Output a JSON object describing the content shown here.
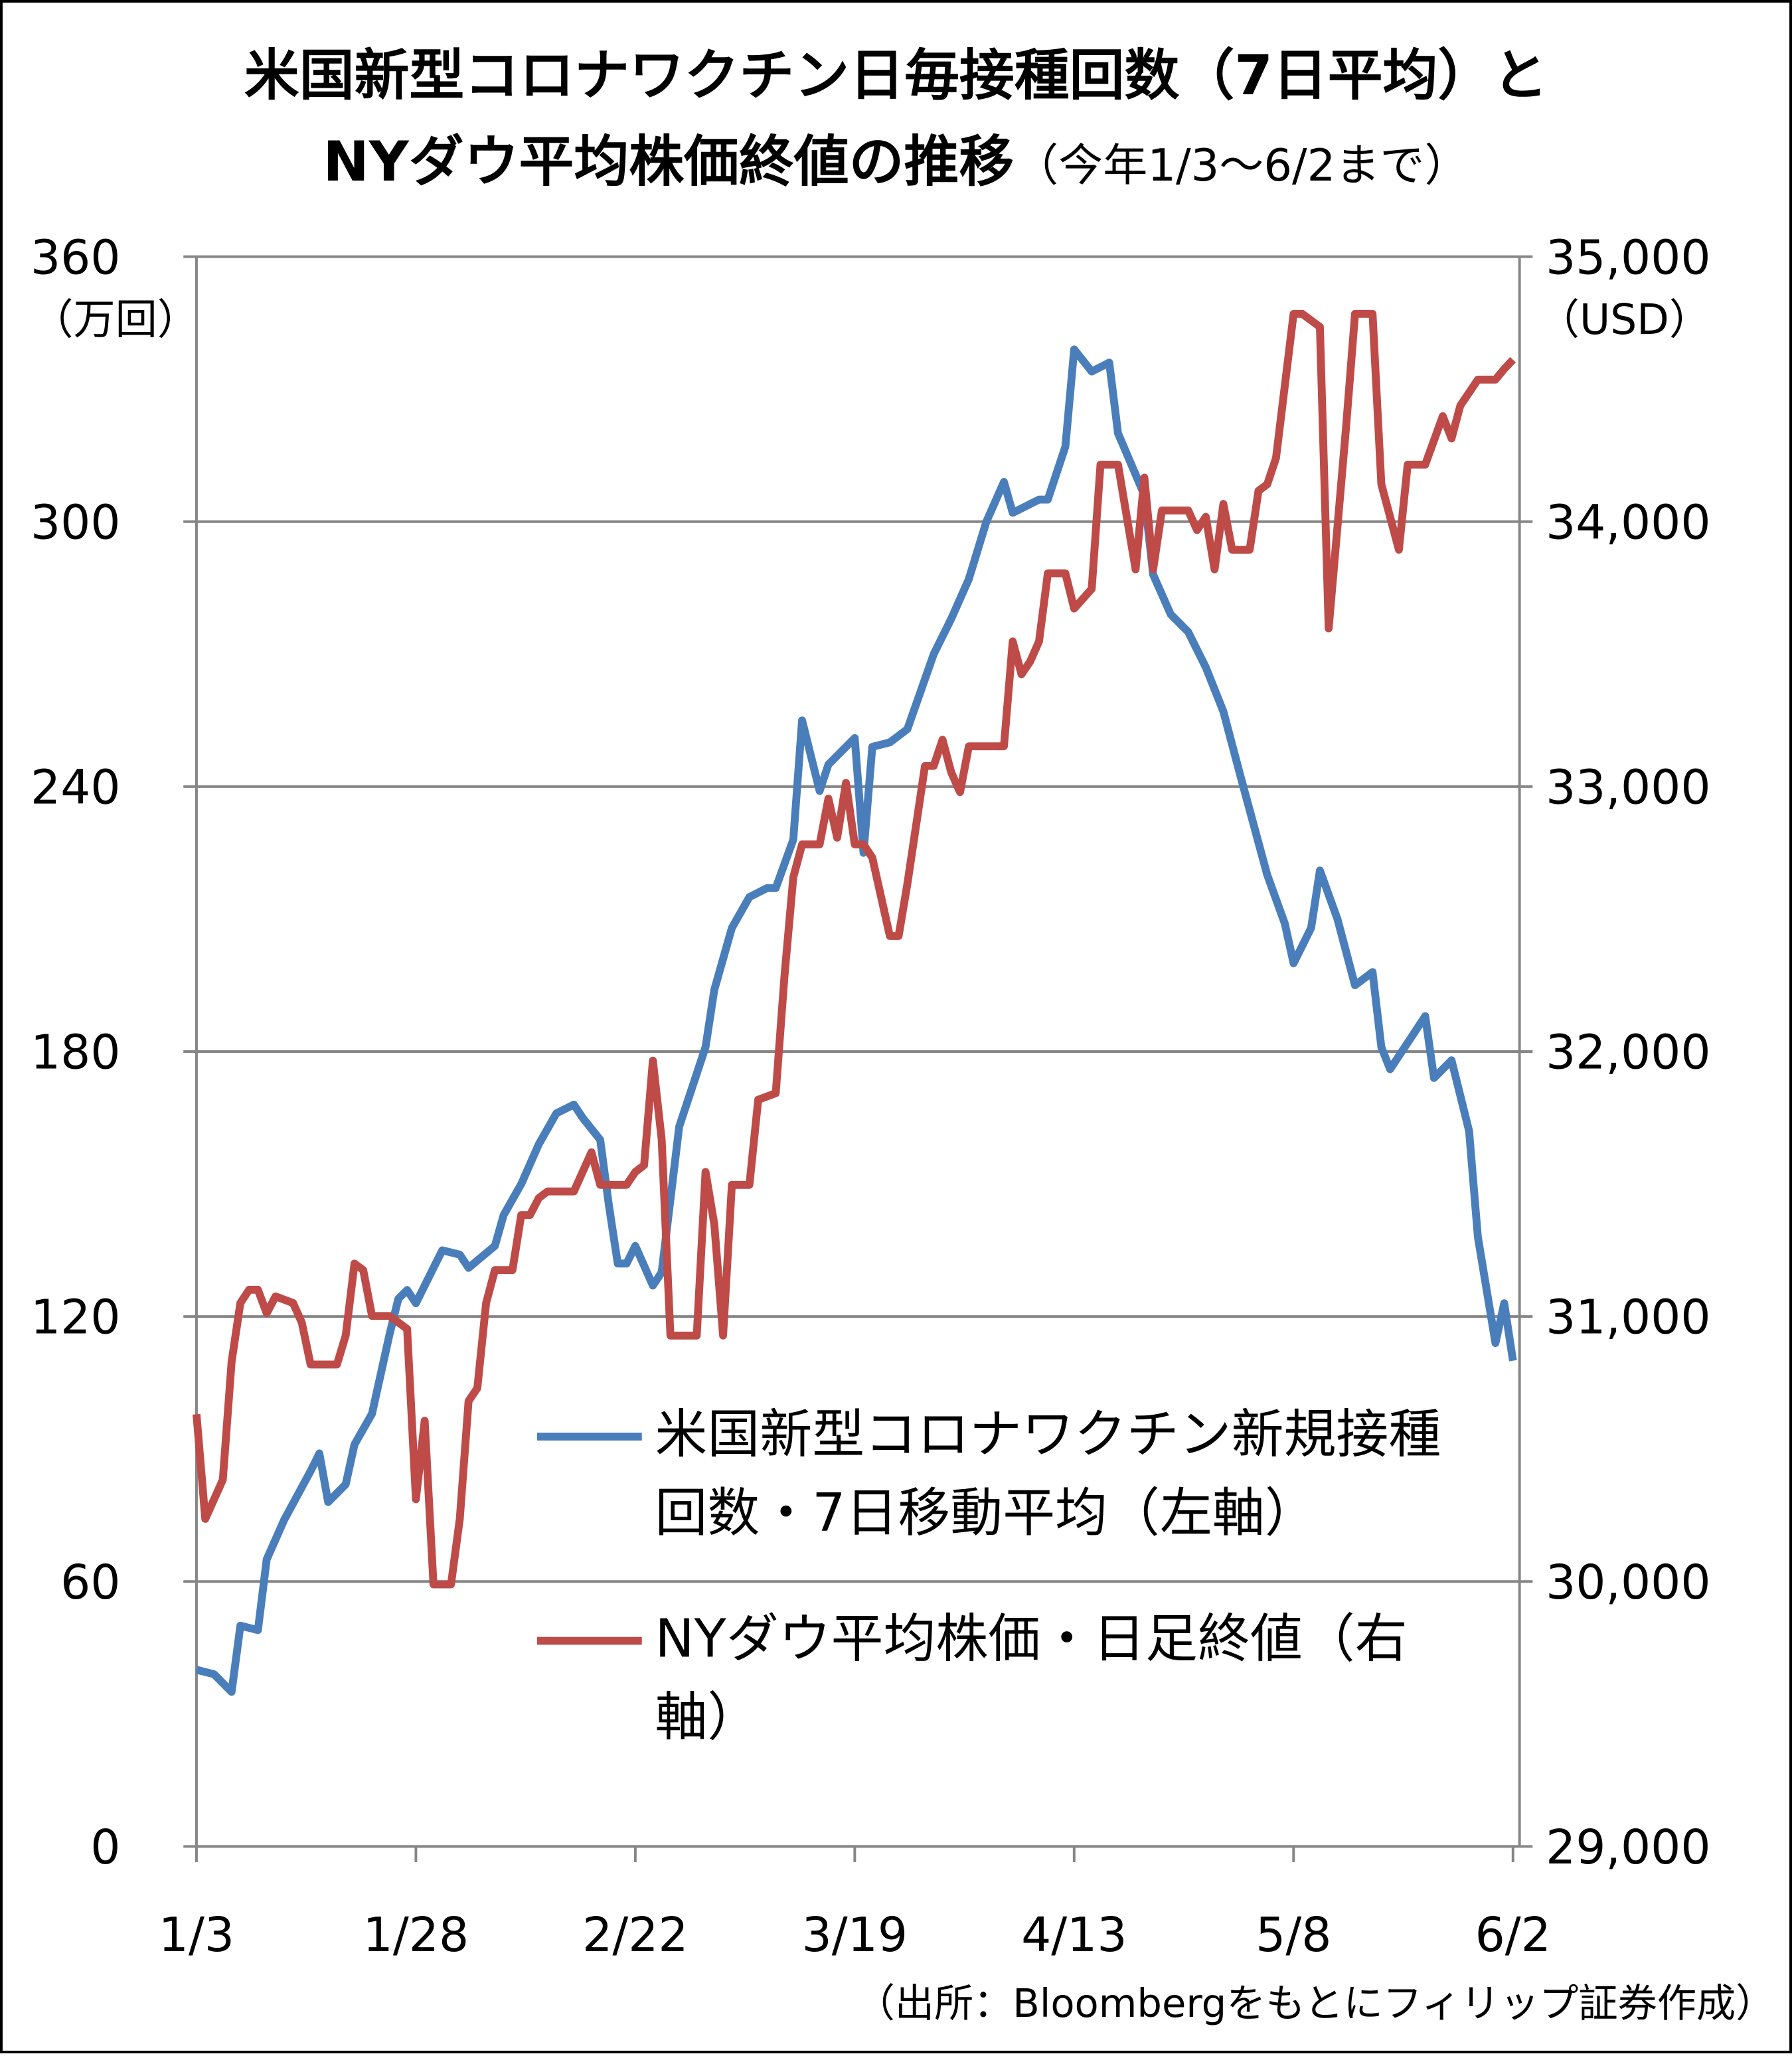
{
  "chart_data": {
    "type": "line",
    "title": [
      "米国新型コロナワクチン日毎接種回数（7日平均）と",
      "NYダウ平均株価終値の推移"
    ],
    "subtitle": "（今年1/3～6/2まで）",
    "y_unit": "（万回）",
    "y2_unit": "（USD）",
    "source": "（出所：Bloombergをもとにフィリップ証券作成）",
    "xlim": [
      "1/3",
      "6/2"
    ],
    "xticks": [
      "1/3",
      "1/28",
      "2/22",
      "3/19",
      "4/13",
      "5/8",
      "6/2"
    ],
    "ylim": [
      0,
      360
    ],
    "yticks": [
      0,
      60,
      120,
      180,
      240,
      300,
      360
    ],
    "y2lim": [
      29000,
      35000
    ],
    "y2ticks": [
      {
        "value": 29000,
        "label": "29,000"
      },
      {
        "value": 30000,
        "label": "30,000"
      },
      {
        "value": 31000,
        "label": "31,000"
      },
      {
        "value": 32000,
        "label": "32,000"
      },
      {
        "value": 33000,
        "label": "33,000"
      },
      {
        "value": 34000,
        "label": "34,000"
      },
      {
        "value": 35000,
        "label": "35,000"
      }
    ],
    "grid": true,
    "series": [
      {
        "name": "米国新型コロナワクチン新規接種回数・7日移動平均（左軸）",
        "color": "#4a7ebb",
        "axis": "y",
        "x": [
          "1/3",
          "1/5",
          "1/7",
          "1/8",
          "1/10",
          "1/11",
          "1/13",
          "1/16",
          "1/17",
          "1/18",
          "1/20",
          "1/21",
          "1/23",
          "1/25",
          "1/26",
          "1/27",
          "1/28",
          "1/30",
          "1/31",
          "2/2",
          "2/3",
          "2/6",
          "2/7",
          "2/9",
          "2/11",
          "2/13",
          "2/15",
          "2/16",
          "2/18",
          "2/19",
          "2/20",
          "2/21",
          "2/22",
          "2/24",
          "2/25",
          "2/27",
          "3/2",
          "3/3",
          "3/5",
          "3/7",
          "3/9",
          "3/10",
          "3/12",
          "3/13",
          "3/15",
          "3/16",
          "3/19",
          "3/20",
          "3/21",
          "3/23",
          "3/25",
          "3/28",
          "3/30",
          "4/1",
          "4/3",
          "4/5",
          "4/6",
          "4/9",
          "4/10",
          "4/12",
          "4/13",
          "4/15",
          "4/17",
          "4/18",
          "4/21",
          "4/22",
          "4/24",
          "4/26",
          "4/28",
          "4/30",
          "5/2",
          "5/5",
          "5/7",
          "5/8",
          "5/10",
          "5/11",
          "5/13",
          "5/15",
          "5/17",
          "5/18",
          "5/19",
          "5/21",
          "5/23",
          "5/24",
          "5/26",
          "5/28",
          "5/29",
          "5/31",
          "6/1",
          "6/2"
        ],
        "values": [
          40,
          39,
          35,
          50,
          49,
          65,
          74,
          85,
          89,
          78,
          82,
          91,
          98,
          116,
          124,
          126,
          123,
          131,
          135,
          134,
          131,
          136,
          143,
          150,
          159,
          166,
          168,
          165,
          160,
          145,
          132,
          132,
          136,
          127,
          130,
          163,
          181,
          194,
          208,
          215,
          217,
          217,
          228,
          255,
          239,
          245,
          251,
          225,
          249,
          250,
          253,
          270,
          278,
          287,
          300,
          309,
          302,
          305,
          305,
          317,
          339,
          334,
          336,
          320,
          306,
          288,
          279,
          275,
          267,
          257,
          242,
          220,
          209,
          200,
          208,
          221,
          210,
          195,
          198,
          181,
          176,
          182,
          188,
          174,
          178,
          162,
          138,
          114,
          123,
          110
        ]
      },
      {
        "name": "NYダウ平均株価・日足終値（右軸）",
        "color": "#be4b48",
        "axis": "y2",
        "x": [
          "1/3",
          "1/4",
          "1/6",
          "1/7",
          "1/8",
          "1/9",
          "1/10",
          "1/11",
          "1/12",
          "1/14",
          "1/15",
          "1/16",
          "1/19",
          "1/20",
          "1/21",
          "1/22",
          "1/23",
          "1/25",
          "1/27",
          "1/28",
          "1/29",
          "1/30",
          "2/1",
          "2/2",
          "2/3",
          "2/4",
          "2/5",
          "2/6",
          "2/8",
          "2/9",
          "2/10",
          "2/11",
          "2/12",
          "2/15",
          "2/17",
          "2/18",
          "2/21",
          "2/22",
          "2/23",
          "2/24",
          "2/25",
          "2/26",
          "3/1",
          "3/2",
          "3/3",
          "3/4",
          "3/5",
          "3/7",
          "3/8",
          "3/10",
          "3/11",
          "3/12",
          "3/13",
          "3/15",
          "3/16",
          "3/17",
          "3/18",
          "3/19",
          "3/20",
          "3/21",
          "3/23",
          "3/24",
          "3/25",
          "3/27",
          "3/28",
          "3/29",
          "3/30",
          "3/31",
          "4/1",
          "4/5",
          "4/6",
          "4/7",
          "4/8",
          "4/9",
          "4/10",
          "4/12",
          "4/13",
          "4/15",
          "4/16",
          "4/18",
          "4/20",
          "4/21",
          "4/22",
          "4/23",
          "4/26",
          "4/27",
          "4/28",
          "4/29",
          "4/30",
          "5/1",
          "5/3",
          "5/4",
          "5/5",
          "5/6",
          "5/8",
          "5/9",
          "5/11",
          "5/12",
          "5/14",
          "5/15",
          "5/17",
          "5/18",
          "5/20",
          "5/21",
          "5/23",
          "5/25",
          "5/26",
          "5/27",
          "5/29",
          "5/31",
          "6/1",
          "6/2"
        ],
        "values": [
          30631,
          30236,
          30384,
          30829,
          31051,
          31101,
          31101,
          31012,
          31076,
          31051,
          30977,
          30819,
          30819,
          30928,
          31200,
          31175,
          31002,
          31002,
          30953,
          30310,
          30607,
          29989,
          29989,
          30236,
          30681,
          30730,
          31051,
          31175,
          31175,
          31383,
          31383,
          31447,
          31472,
          31472,
          31620,
          31497,
          31497,
          31546,
          31571,
          31966,
          31669,
          30928,
          30928,
          31546,
          31348,
          30928,
          31497,
          31497,
          31818,
          31843,
          32287,
          32658,
          32782,
          32782,
          32955,
          32807,
          33014,
          32782,
          32782,
          32732,
          32436,
          32436,
          32633,
          33078,
          33078,
          33177,
          33053,
          32979,
          33152,
          33152,
          33548,
          33424,
          33473,
          33548,
          33805,
          33805,
          33672,
          33746,
          34215,
          34215,
          33820,
          34166,
          33820,
          34042,
          34042,
          33968,
          34018,
          33820,
          34067,
          33894,
          33894,
          34116,
          34141,
          34240,
          34784,
          34784,
          34735,
          33597,
          34364,
          34784,
          34784,
          34141,
          33894,
          34215,
          34215,
          34398,
          34314,
          34438,
          34536,
          34536,
          34576,
          34611
        ]
      }
    ]
  }
}
